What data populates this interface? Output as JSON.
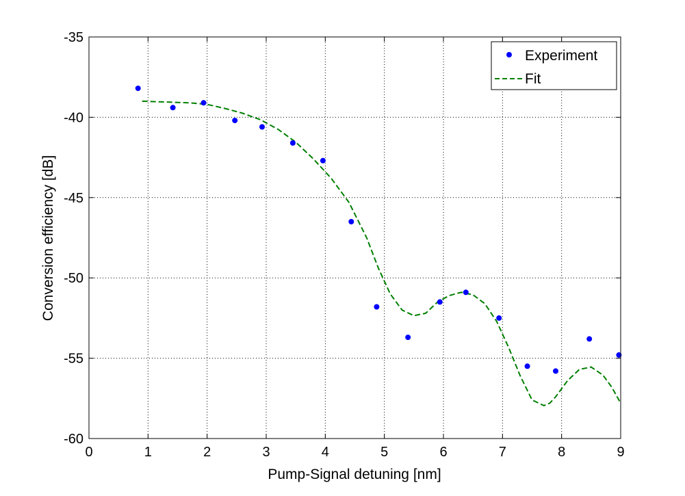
{
  "chart_data": {
    "type": "scatter",
    "title": "",
    "xlabel": "Pump-Signal detuning [nm]",
    "ylabel": "Conversion efficiency [dB]",
    "xlim": [
      0,
      9
    ],
    "ylim": [
      -60,
      -35
    ],
    "x_ticks": [
      0,
      1,
      2,
      3,
      4,
      5,
      6,
      7,
      8,
      9
    ],
    "y_ticks": [
      -35,
      -40,
      -45,
      -50,
      -55,
      -60
    ],
    "grid": true,
    "legend_position": "top-right",
    "series": [
      {
        "name": "Experiment",
        "style": "markers",
        "color": "#0000ff",
        "x": [
          0.83,
          1.42,
          1.94,
          2.47,
          2.93,
          3.45,
          3.96,
          4.44,
          4.87,
          5.4,
          5.94,
          6.38,
          6.94,
          7.42,
          7.9,
          8.47,
          8.97
        ],
        "y": [
          -38.2,
          -39.4,
          -39.1,
          -40.2,
          -40.6,
          -41.6,
          -42.7,
          -46.5,
          -51.8,
          -53.7,
          -51.5,
          -50.9,
          -52.5,
          -55.5,
          -55.8,
          -53.8,
          -54.8
        ]
      },
      {
        "name": "Fit",
        "style": "dashed-line",
        "color": "#007f00",
        "x": [
          0.9,
          1.3,
          1.7,
          2.0,
          2.3,
          2.6,
          2.9,
          3.2,
          3.5,
          3.8,
          4.1,
          4.4,
          4.7,
          4.9,
          5.1,
          5.3,
          5.5,
          5.7,
          5.9,
          6.1,
          6.3,
          6.5,
          6.7,
          6.9,
          7.1,
          7.3,
          7.5,
          7.7,
          7.8,
          7.9,
          8.1,
          8.3,
          8.5,
          8.7,
          8.85,
          9.0
        ],
        "y": [
          -39.0,
          -39.05,
          -39.1,
          -39.2,
          -39.45,
          -39.75,
          -40.15,
          -40.75,
          -41.55,
          -42.6,
          -43.8,
          -45.3,
          -47.5,
          -49.4,
          -51.0,
          -52.0,
          -52.35,
          -52.2,
          -51.5,
          -51.1,
          -50.9,
          -51.05,
          -51.6,
          -52.7,
          -54.3,
          -56.1,
          -57.6,
          -57.95,
          -57.8,
          -57.4,
          -56.4,
          -55.7,
          -55.55,
          -56.05,
          -56.8,
          -57.8
        ]
      }
    ]
  }
}
